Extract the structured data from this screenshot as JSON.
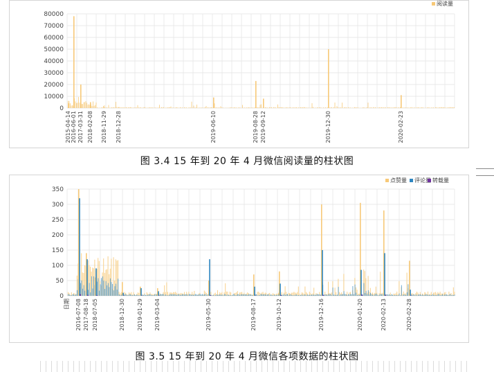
{
  "figure1": {
    "caption": "图 3.4   15 年到 20 年 4 月微信阅读量的柱状图",
    "legend": [
      "阅读量"
    ],
    "yticks": [
      "80000",
      "70000",
      "60000",
      "50000",
      "40000",
      "30000",
      "20000",
      "10000",
      "0"
    ],
    "xticks": [
      "2015-04-14",
      "2016-06-01",
      "2017-03-31",
      "2018-02-08",
      "2018-11-29",
      "2018-12-28",
      "2019-06-10",
      "2019-08-28",
      "2019-09-12",
      "2019-12-30",
      "2020-02-23"
    ]
  },
  "figure2": {
    "caption": "图 3.5   15 年到 20 年 4 月微信各项数据的柱状图",
    "legend": [
      "点赞量",
      "评论量",
      "转载量"
    ],
    "yticks": [
      "350",
      "300",
      "250",
      "200",
      "150",
      "100",
      "50",
      "0"
    ],
    "x_axis_label": "日期",
    "xticks": [
      "2016-07-08",
      "2017-08-18",
      "2018-07-05",
      "2018-12-30",
      "2019-01-29",
      "2019-03-04",
      "2019-05-30",
      "2019-08-17",
      "2019-10-12",
      "2019-12-16",
      "2020-01-20",
      "2020-02-13",
      "2020-02-28"
    ]
  },
  "colors": {
    "reads": "#f7c978",
    "likes": "#f7c978",
    "comments": "#2e86c1",
    "reposts": "#7030a0"
  },
  "chart_data": [
    {
      "type": "bar",
      "title": "",
      "xlabel": "",
      "ylabel": "",
      "ylim": [
        0,
        80000
      ],
      "legend_position": "top-right",
      "grid": true,
      "categories": [
        "2015-04-14",
        "2016-06-01",
        "2017-03-31",
        "2018-02-08",
        "2018-11-29",
        "2018-12-28",
        "2019-06-10",
        "2019-08-28",
        "2019-09-12",
        "2019-12-30",
        "2020-02-23"
      ],
      "series": [
        {
          "name": "阅读量",
          "values": [
            4000,
            78000,
            20000,
            5000,
            500,
            800,
            9000,
            23000,
            8000,
            50000,
            11000
          ]
        }
      ]
    },
    {
      "type": "bar",
      "title": "",
      "xlabel": "日期",
      "ylabel": "",
      "ylim": [
        0,
        350
      ],
      "legend_position": "top-right",
      "grid": true,
      "categories": [
        "2016-07-08",
        "2017-08-18",
        "2018-07-05",
        "2018-12-30",
        "2019-01-29",
        "2019-03-04",
        "2019-05-30",
        "2019-08-17",
        "2019-10-12",
        "2019-12-16",
        "2020-01-20",
        "2020-02-13",
        "2020-02-28"
      ],
      "series": [
        {
          "name": "点赞量",
          "values": [
            350,
            140,
            60,
            45,
            30,
            25,
            50,
            70,
            80,
            300,
            305,
            280,
            115
          ]
        },
        {
          "name": "评论量",
          "values": [
            320,
            120,
            90,
            10,
            25,
            15,
            120,
            30,
            40,
            150,
            85,
            140,
            20
          ]
        },
        {
          "name": "转载量",
          "values": [
            5,
            3,
            2,
            1,
            1,
            1,
            2,
            1,
            2,
            3,
            4,
            3,
            1
          ]
        }
      ]
    }
  ]
}
